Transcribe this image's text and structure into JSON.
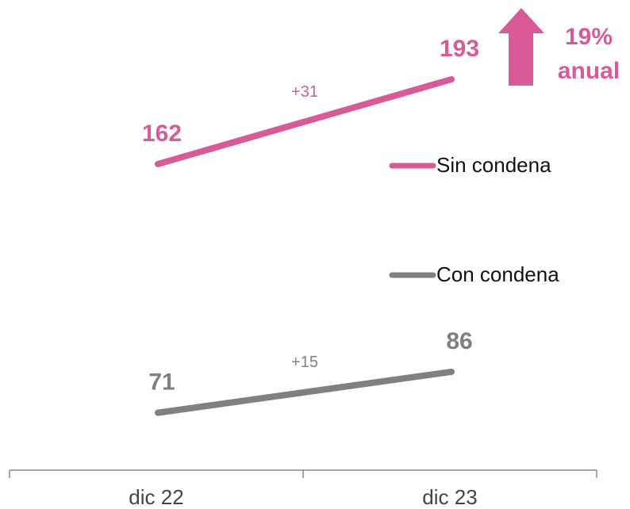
{
  "chart_data": {
    "type": "line",
    "categories": [
      "dic 22",
      "dic 23"
    ],
    "series": [
      {
        "name": "Sin condena",
        "color": "#d85a96",
        "values": [
          162,
          193
        ],
        "change": "+31"
      },
      {
        "name": "Con condena",
        "color": "#808080",
        "values": [
          71,
          86
        ],
        "change": "+15"
      }
    ],
    "ylim": [
      50,
      220
    ],
    "legend": "right",
    "annotations": [
      "19%",
      "anual"
    ],
    "annotation_color": "#d85a96"
  }
}
